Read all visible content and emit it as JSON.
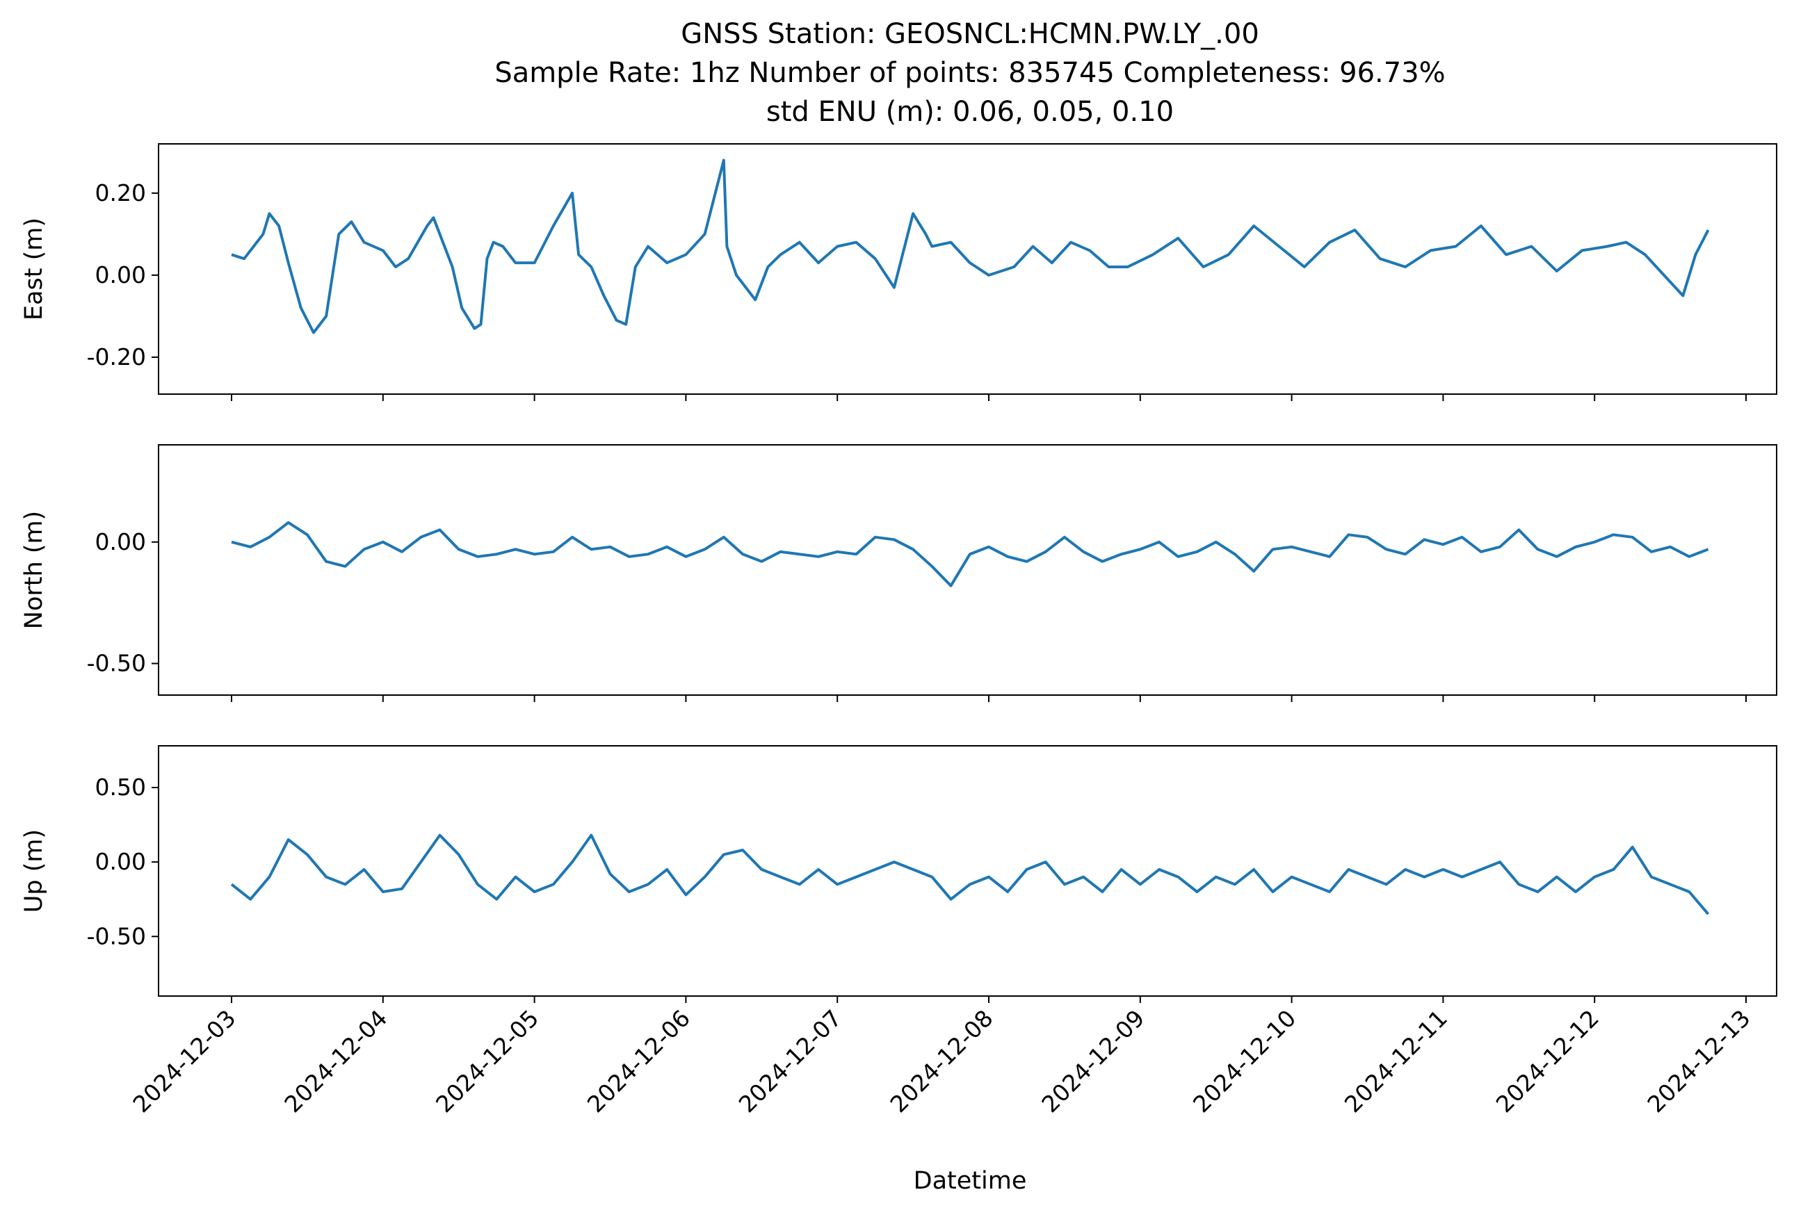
{
  "title_lines": [
    "GNSS Station: GEOSNCL:HCMN.PW.LY_.00",
    "Sample Rate: 1hz   Number of points: 835745    Completeness:  96.73%",
    "std ENU (m):  0.06, 0.05, 0.10"
  ],
  "xlabel": "Datetime",
  "colors": {
    "series": "#1f77b4",
    "axes": "#000000"
  },
  "chart_data": [
    {
      "type": "line",
      "ylabel": "East (m)",
      "ylim": [
        -0.29,
        0.32
      ],
      "yticks": [
        0.2,
        0.0,
        -0.2
      ],
      "ytick_labels": [
        "0.20",
        "0.00",
        "-0.20"
      ],
      "x_range": [
        "2024-12-03",
        "2024-12-12T18:00"
      ],
      "x": [
        "2024-12-03T00:00",
        "2024-12-03T02:00",
        "2024-12-03T05:00",
        "2024-12-03T06:00",
        "2024-12-03T07:30",
        "2024-12-03T09:00",
        "2024-12-03T11:00",
        "2024-12-03T13:00",
        "2024-12-03T15:00",
        "2024-12-03T17:00",
        "2024-12-03T19:00",
        "2024-12-03T21:00",
        "2024-12-04T00:00",
        "2024-12-04T02:00",
        "2024-12-04T04:00",
        "2024-12-04T07:00",
        "2024-12-04T08:00",
        "2024-12-04T11:00",
        "2024-12-04T12:30",
        "2024-12-04T14:30",
        "2024-12-04T15:30",
        "2024-12-04T16:30",
        "2024-12-04T17:30",
        "2024-12-04T19:00",
        "2024-12-04T21:00",
        "2024-12-05T00:00",
        "2024-12-05T03:00",
        "2024-12-05T06:00",
        "2024-12-05T07:00",
        "2024-12-05T09:00",
        "2024-12-05T11:00",
        "2024-12-05T13:00",
        "2024-12-05T14:30",
        "2024-12-05T16:00",
        "2024-12-05T18:00",
        "2024-12-05T21:00",
        "2024-12-06T00:00",
        "2024-12-06T03:00",
        "2024-12-06T06:00",
        "2024-12-06T06:30",
        "2024-12-06T08:00",
        "2024-12-06T11:00",
        "2024-12-06T13:00",
        "2024-12-06T15:00",
        "2024-12-06T18:00",
        "2024-12-06T21:00",
        "2024-12-07T00:00",
        "2024-12-07T03:00",
        "2024-12-07T06:00",
        "2024-12-07T09:00",
        "2024-12-07T12:00",
        "2024-12-07T14:00",
        "2024-12-07T15:00",
        "2024-12-07T18:00",
        "2024-12-07T21:00",
        "2024-12-08T00:00",
        "2024-12-08T04:00",
        "2024-12-08T07:00",
        "2024-12-08T10:00",
        "2024-12-08T13:00",
        "2024-12-08T16:00",
        "2024-12-08T19:00",
        "2024-12-08T22:00",
        "2024-12-09T02:00",
        "2024-12-09T06:00",
        "2024-12-09T10:00",
        "2024-12-09T14:00",
        "2024-12-09T18:00",
        "2024-12-09T22:00",
        "2024-12-10T02:00",
        "2024-12-10T06:00",
        "2024-12-10T10:00",
        "2024-12-10T14:00",
        "2024-12-10T18:00",
        "2024-12-10T22:00",
        "2024-12-11T02:00",
        "2024-12-11T06:00",
        "2024-12-11T10:00",
        "2024-12-11T14:00",
        "2024-12-11T18:00",
        "2024-12-11T22:00",
        "2024-12-12T02:00",
        "2024-12-12T05:00",
        "2024-12-12T08:00",
        "2024-12-12T11:00",
        "2024-12-12T14:00",
        "2024-12-12T16:00",
        "2024-12-12T18:00"
      ],
      "y": [
        0.05,
        0.04,
        0.1,
        0.15,
        0.12,
        0.03,
        -0.08,
        -0.14,
        -0.1,
        0.1,
        0.13,
        0.08,
        0.06,
        0.02,
        0.04,
        0.12,
        0.14,
        0.02,
        -0.08,
        -0.13,
        -0.12,
        0.04,
        0.08,
        0.07,
        0.03,
        0.03,
        0.12,
        0.2,
        0.05,
        0.02,
        -0.05,
        -0.11,
        -0.12,
        0.02,
        0.07,
        0.03,
        0.05,
        0.1,
        0.28,
        0.07,
        0.0,
        -0.06,
        0.02,
        0.05,
        0.08,
        0.03,
        0.07,
        0.08,
        0.04,
        -0.03,
        0.15,
        0.1,
        0.07,
        0.08,
        0.03,
        0.0,
        0.02,
        0.07,
        0.03,
        0.08,
        0.06,
        0.02,
        0.02,
        0.05,
        0.09,
        0.02,
        0.05,
        0.12,
        0.07,
        0.02,
        0.08,
        0.11,
        0.04,
        0.02,
        0.06,
        0.07,
        0.12,
        0.05,
        0.07,
        0.01,
        0.06,
        0.07,
        0.08,
        0.05,
        0.0,
        -0.05,
        0.05,
        0.11
      ]
    },
    {
      "type": "line",
      "ylabel": "North (m)",
      "ylim": [
        -0.63,
        0.4
      ],
      "yticks": [
        0.0,
        -0.5
      ],
      "ytick_labels": [
        "0.00",
        "-0.50"
      ],
      "x_range": [
        "2024-12-03",
        "2024-12-12T18:00"
      ],
      "x": [
        "2024-12-03T00:00",
        "2024-12-03T03:00",
        "2024-12-03T06:00",
        "2024-12-03T09:00",
        "2024-12-03T12:00",
        "2024-12-03T15:00",
        "2024-12-03T18:00",
        "2024-12-03T21:00",
        "2024-12-04T00:00",
        "2024-12-04T03:00",
        "2024-12-04T06:00",
        "2024-12-04T09:00",
        "2024-12-04T12:00",
        "2024-12-04T15:00",
        "2024-12-04T18:00",
        "2024-12-04T21:00",
        "2024-12-05T00:00",
        "2024-12-05T03:00",
        "2024-12-05T06:00",
        "2024-12-05T09:00",
        "2024-12-05T12:00",
        "2024-12-05T15:00",
        "2024-12-05T18:00",
        "2024-12-05T21:00",
        "2024-12-06T00:00",
        "2024-12-06T03:00",
        "2024-12-06T06:00",
        "2024-12-06T09:00",
        "2024-12-06T12:00",
        "2024-12-06T15:00",
        "2024-12-06T18:00",
        "2024-12-06T21:00",
        "2024-12-07T00:00",
        "2024-12-07T03:00",
        "2024-12-07T06:00",
        "2024-12-07T09:00",
        "2024-12-07T12:00",
        "2024-12-07T15:00",
        "2024-12-07T18:00",
        "2024-12-07T21:00",
        "2024-12-08T00:00",
        "2024-12-08T03:00",
        "2024-12-08T06:00",
        "2024-12-08T09:00",
        "2024-12-08T12:00",
        "2024-12-08T15:00",
        "2024-12-08T18:00",
        "2024-12-08T21:00",
        "2024-12-09T00:00",
        "2024-12-09T03:00",
        "2024-12-09T06:00",
        "2024-12-09T09:00",
        "2024-12-09T12:00",
        "2024-12-09T15:00",
        "2024-12-09T18:00",
        "2024-12-09T21:00",
        "2024-12-10T00:00",
        "2024-12-10T03:00",
        "2024-12-10T06:00",
        "2024-12-10T09:00",
        "2024-12-10T12:00",
        "2024-12-10T15:00",
        "2024-12-10T18:00",
        "2024-12-10T21:00",
        "2024-12-11T00:00",
        "2024-12-11T03:00",
        "2024-12-11T06:00",
        "2024-12-11T09:00",
        "2024-12-11T12:00",
        "2024-12-11T15:00",
        "2024-12-11T18:00",
        "2024-12-11T21:00",
        "2024-12-12T00:00",
        "2024-12-12T03:00",
        "2024-12-12T06:00",
        "2024-12-12T09:00",
        "2024-12-12T12:00",
        "2024-12-12T15:00",
        "2024-12-12T18:00"
      ],
      "y": [
        0.0,
        -0.02,
        0.02,
        0.08,
        0.03,
        -0.08,
        -0.1,
        -0.03,
        0.0,
        -0.04,
        0.02,
        0.05,
        -0.03,
        -0.06,
        -0.05,
        -0.03,
        -0.05,
        -0.04,
        0.02,
        -0.03,
        -0.02,
        -0.06,
        -0.05,
        -0.02,
        -0.06,
        -0.03,
        0.02,
        -0.05,
        -0.08,
        -0.04,
        -0.05,
        -0.06,
        -0.04,
        -0.05,
        0.02,
        0.01,
        -0.03,
        -0.1,
        -0.18,
        -0.05,
        -0.02,
        -0.06,
        -0.08,
        -0.04,
        0.02,
        -0.04,
        -0.08,
        -0.05,
        -0.03,
        0.0,
        -0.06,
        -0.04,
        0.0,
        -0.05,
        -0.12,
        -0.03,
        -0.02,
        -0.04,
        -0.06,
        0.03,
        0.02,
        -0.03,
        -0.05,
        0.01,
        -0.01,
        0.02,
        -0.04,
        -0.02,
        0.05,
        -0.03,
        -0.06,
        -0.02,
        0.0,
        0.03,
        0.02,
        -0.04,
        -0.02,
        -0.06,
        -0.03
      ]
    },
    {
      "type": "line",
      "ylabel": "Up (m)",
      "ylim": [
        -0.9,
        0.78
      ],
      "yticks": [
        0.5,
        0.0,
        -0.5
      ],
      "ytick_labels": [
        "0.50",
        "0.00",
        "-0.50"
      ],
      "x_range": [
        "2024-12-03",
        "2024-12-12T18:00"
      ],
      "x": [
        "2024-12-03T00:00",
        "2024-12-03T03:00",
        "2024-12-03T06:00",
        "2024-12-03T09:00",
        "2024-12-03T12:00",
        "2024-12-03T15:00",
        "2024-12-03T18:00",
        "2024-12-03T21:00",
        "2024-12-04T00:00",
        "2024-12-04T03:00",
        "2024-12-04T06:00",
        "2024-12-04T09:00",
        "2024-12-04T12:00",
        "2024-12-04T15:00",
        "2024-12-04T18:00",
        "2024-12-04T21:00",
        "2024-12-05T00:00",
        "2024-12-05T03:00",
        "2024-12-05T06:00",
        "2024-12-05T09:00",
        "2024-12-05T12:00",
        "2024-12-05T15:00",
        "2024-12-05T18:00",
        "2024-12-05T21:00",
        "2024-12-06T00:00",
        "2024-12-06T03:00",
        "2024-12-06T06:00",
        "2024-12-06T09:00",
        "2024-12-06T12:00",
        "2024-12-06T15:00",
        "2024-12-06T18:00",
        "2024-12-06T21:00",
        "2024-12-07T00:00",
        "2024-12-07T03:00",
        "2024-12-07T06:00",
        "2024-12-07T09:00",
        "2024-12-07T12:00",
        "2024-12-07T15:00",
        "2024-12-07T18:00",
        "2024-12-07T21:00",
        "2024-12-08T00:00",
        "2024-12-08T03:00",
        "2024-12-08T06:00",
        "2024-12-08T09:00",
        "2024-12-08T12:00",
        "2024-12-08T15:00",
        "2024-12-08T18:00",
        "2024-12-08T21:00",
        "2024-12-09T00:00",
        "2024-12-09T03:00",
        "2024-12-09T06:00",
        "2024-12-09T09:00",
        "2024-12-09T12:00",
        "2024-12-09T15:00",
        "2024-12-09T18:00",
        "2024-12-09T21:00",
        "2024-12-10T00:00",
        "2024-12-10T03:00",
        "2024-12-10T06:00",
        "2024-12-10T09:00",
        "2024-12-10T12:00",
        "2024-12-10T15:00",
        "2024-12-10T18:00",
        "2024-12-10T21:00",
        "2024-12-11T00:00",
        "2024-12-11T03:00",
        "2024-12-11T06:00",
        "2024-12-11T09:00",
        "2024-12-11T12:00",
        "2024-12-11T15:00",
        "2024-12-11T18:00",
        "2024-12-11T21:00",
        "2024-12-12T00:00",
        "2024-12-12T03:00",
        "2024-12-12T06:00",
        "2024-12-12T09:00",
        "2024-12-12T12:00",
        "2024-12-12T15:00",
        "2024-12-12T18:00"
      ],
      "y": [
        -0.15,
        -0.25,
        -0.1,
        0.15,
        0.05,
        -0.1,
        -0.15,
        -0.05,
        -0.2,
        -0.18,
        0.0,
        0.18,
        0.05,
        -0.15,
        -0.25,
        -0.1,
        -0.2,
        -0.15,
        0.0,
        0.18,
        -0.08,
        -0.2,
        -0.15,
        -0.05,
        -0.22,
        -0.1,
        0.05,
        0.08,
        -0.05,
        -0.1,
        -0.15,
        -0.05,
        -0.15,
        -0.1,
        -0.05,
        0.0,
        -0.05,
        -0.1,
        -0.25,
        -0.15,
        -0.1,
        -0.2,
        -0.05,
        0.0,
        -0.15,
        -0.1,
        -0.2,
        -0.05,
        -0.15,
        -0.05,
        -0.1,
        -0.2,
        -0.1,
        -0.15,
        -0.05,
        -0.2,
        -0.1,
        -0.15,
        -0.2,
        -0.05,
        -0.1,
        -0.15,
        -0.05,
        -0.1,
        -0.05,
        -0.1,
        -0.05,
        0.0,
        -0.15,
        -0.2,
        -0.1,
        -0.2,
        -0.1,
        -0.05,
        0.1,
        -0.1,
        -0.15,
        -0.2,
        -0.35
      ]
    }
  ],
  "x_axis": {
    "ticks": [
      "2024-12-03",
      "2024-12-04",
      "2024-12-05",
      "2024-12-06",
      "2024-12-07",
      "2024-12-08",
      "2024-12-09",
      "2024-12-10",
      "2024-12-11",
      "2024-12-12",
      "2024-12-13"
    ],
    "tick_labels": [
      "2024-12-03",
      "2024-12-04",
      "2024-12-05",
      "2024-12-06",
      "2024-12-07",
      "2024-12-08",
      "2024-12-09",
      "2024-12-10",
      "2024-12-11",
      "2024-12-12",
      "2024-12-13"
    ]
  }
}
